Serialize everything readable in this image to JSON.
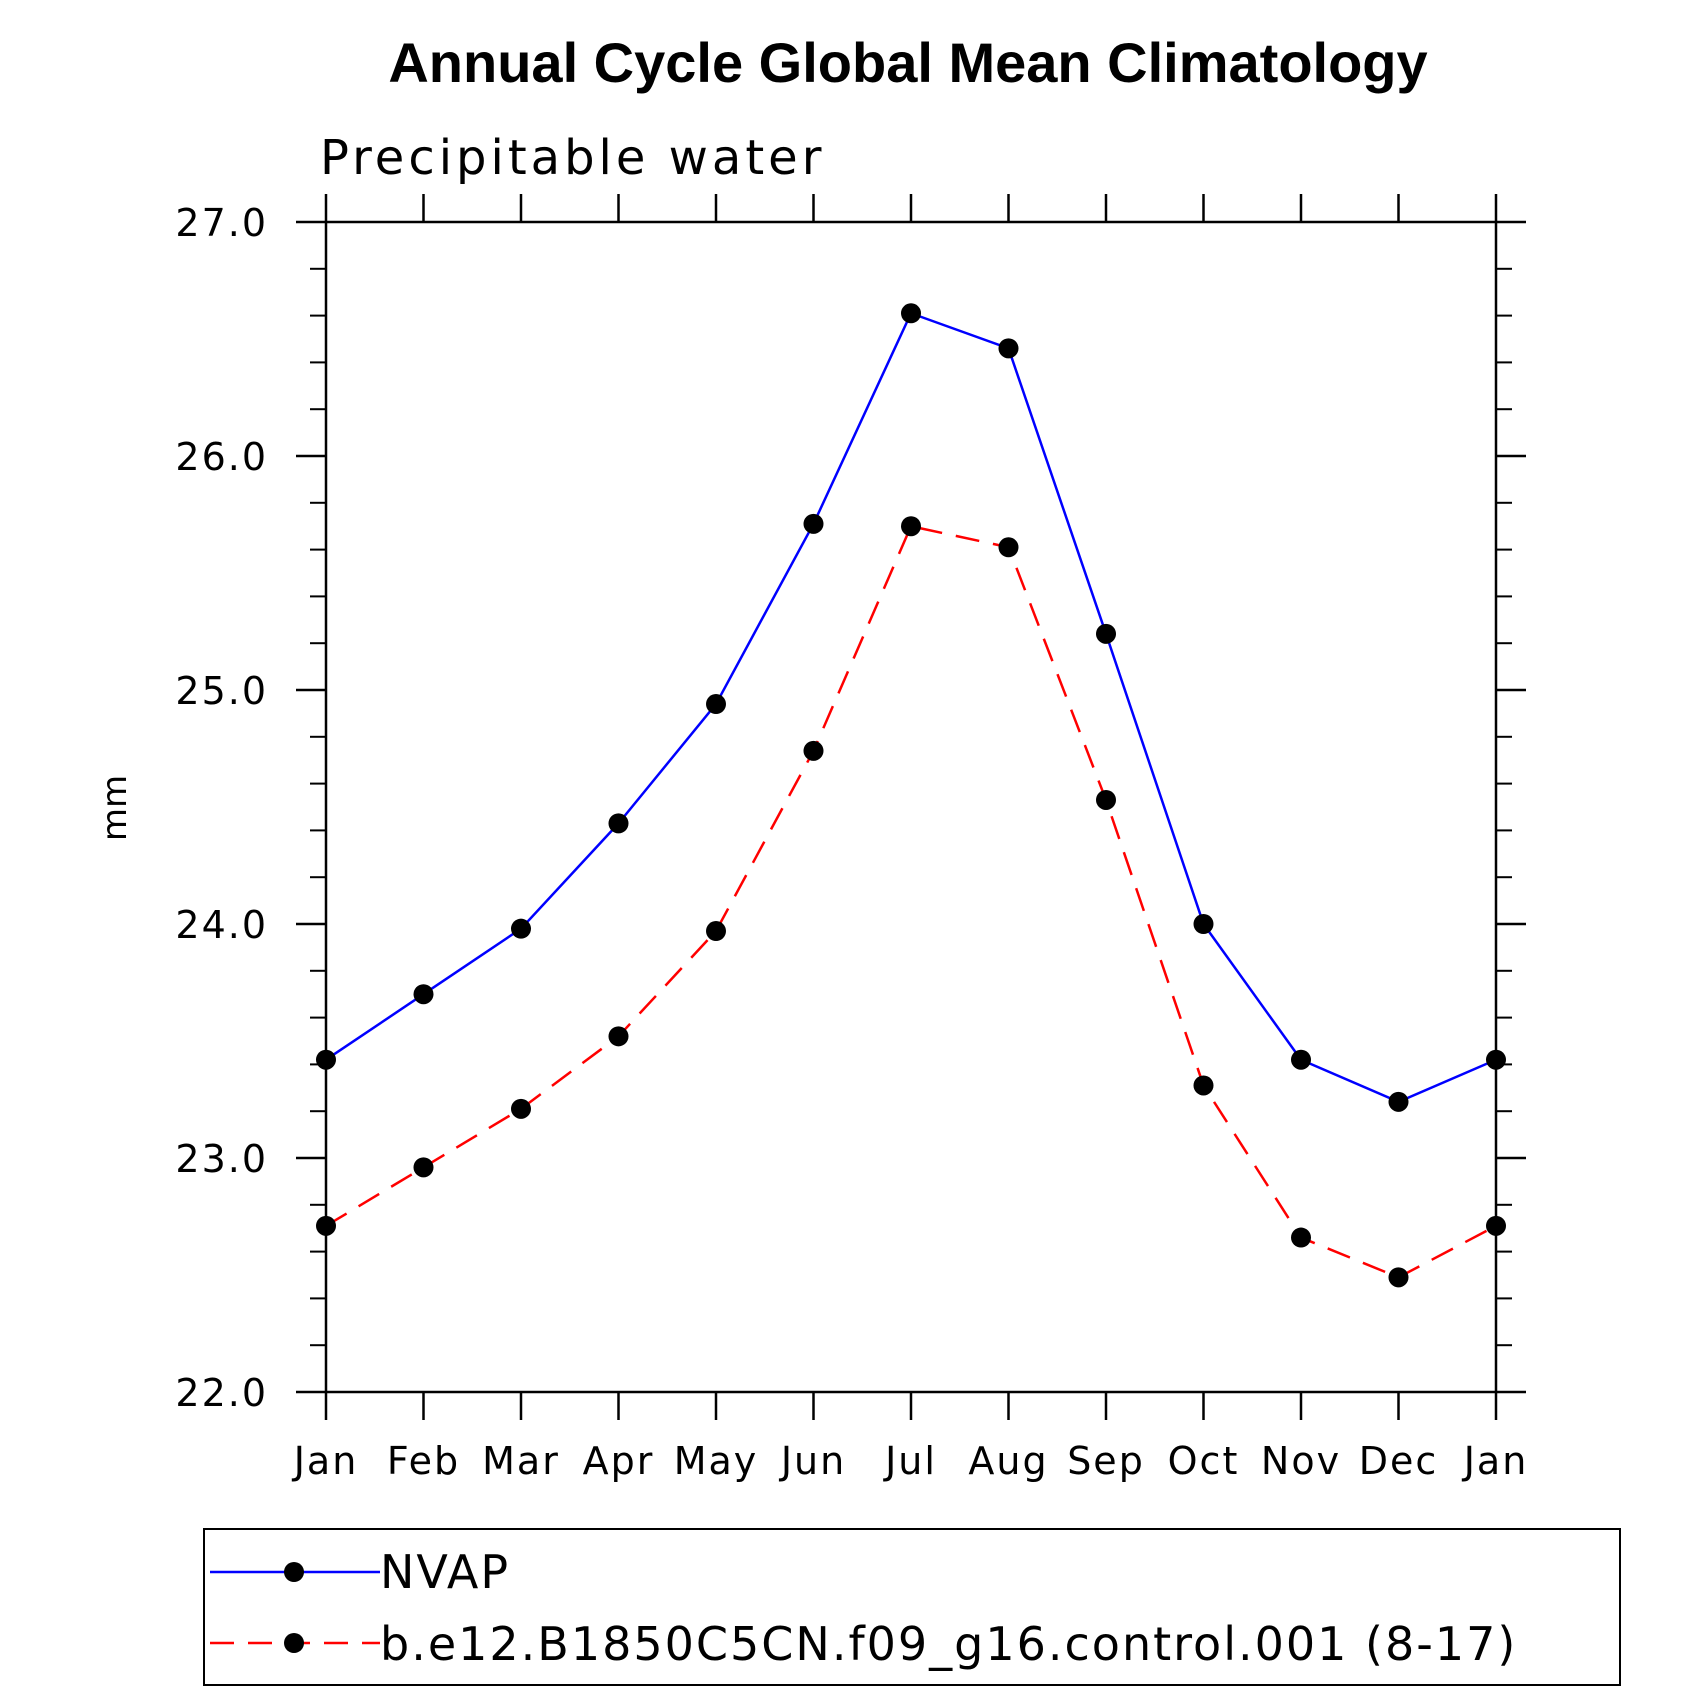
{
  "chart_data": {
    "type": "line",
    "title": "Annual Cycle Global Mean Climatology",
    "subtitle": "Precipitable water",
    "xlabel": "",
    "ylabel": "mm",
    "categories": [
      "Jan",
      "Feb",
      "Mar",
      "Apr",
      "May",
      "Jun",
      "Jul",
      "Aug",
      "Sep",
      "Oct",
      "Nov",
      "Dec",
      "Jan"
    ],
    "ylim": [
      22.0,
      27.0
    ],
    "yticks": [
      "22.0",
      "23.0",
      "24.0",
      "25.0",
      "26.0",
      "27.0"
    ],
    "grid": false,
    "legend_position": "bottom",
    "series": [
      {
        "name": "NVAP",
        "color": "#0000ff",
        "line_style": "solid",
        "marker": "filled-circle",
        "values": [
          23.42,
          23.7,
          23.98,
          24.43,
          24.94,
          25.71,
          26.61,
          26.46,
          25.24,
          24.0,
          23.42,
          23.24,
          23.42
        ]
      },
      {
        "name": "b.e12.B1850C5CN.f09_g16.control.001 (8-17)",
        "color": "#ff0000",
        "line_style": "dashed",
        "marker": "filled-circle",
        "values": [
          22.71,
          22.96,
          23.21,
          23.52,
          23.97,
          24.74,
          25.7,
          25.61,
          24.53,
          23.31,
          22.66,
          22.49,
          22.71
        ]
      }
    ]
  }
}
